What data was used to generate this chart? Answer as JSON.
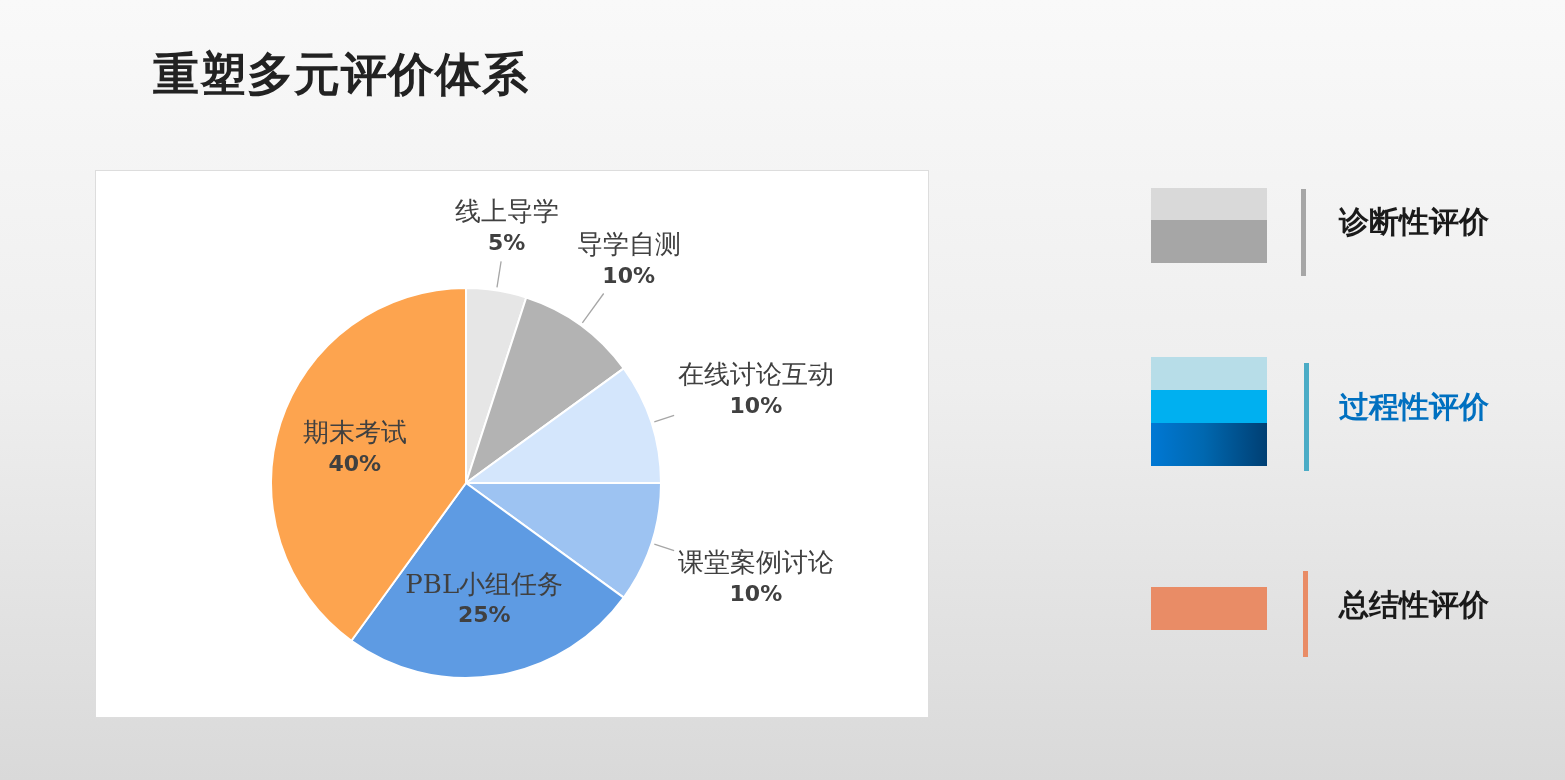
{
  "chart_data": [
    {
      "type": "pie",
      "title": "重塑多元评价体系",
      "categories": [
        "线上导学",
        "导学自测",
        "在线讨论互动",
        "课堂案例讨论",
        "PBL小组任务",
        "期末考试"
      ],
      "values": [
        5,
        10,
        10,
        10,
        25,
        40
      ],
      "colors": [
        "#e6e6e6",
        "#b3b3b3",
        "#d4e6fc",
        "#9dc3f2",
        "#5e9be3",
        "#fda44f"
      ],
      "value_labels": [
        "5%",
        "10%",
        "10%",
        "10%",
        "25%",
        "40%"
      ]
    },
    {
      "type": "other",
      "annotations": [
        "诊断性评价",
        "过程性评价",
        "总结性评价"
      ]
    }
  ]
}
